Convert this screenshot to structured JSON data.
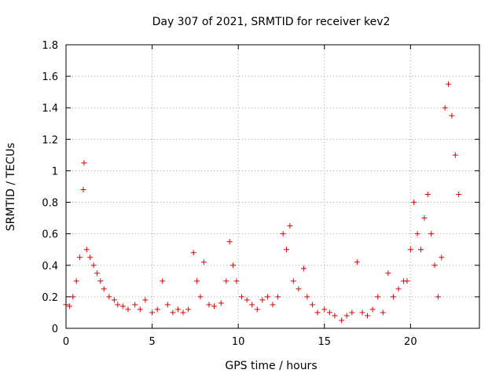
{
  "chart_data": {
    "type": "scatter",
    "title": "Day 307 of 2021, SRMTID for receiver kev2",
    "xlabel": "GPS time / hours",
    "ylabel": "SRMTID / TECUs",
    "xlim": [
      0,
      24
    ],
    "ylim": [
      0,
      1.8
    ],
    "xticks": [
      0,
      5,
      10,
      15,
      20
    ],
    "xtick_labels": [
      "0",
      "5",
      "10",
      "15",
      "20"
    ],
    "yticks": [
      0,
      0.2,
      0.4,
      0.6,
      0.8,
      1.0,
      1.2,
      1.4,
      1.6,
      1.8
    ],
    "ytick_labels": [
      "0",
      "0.2",
      "0.4",
      "0.6",
      "0.8",
      "1",
      "1.2",
      "1.4",
      "1.6",
      "1.8"
    ],
    "grid": true,
    "marker": "+",
    "color": "#e00000",
    "series": [
      {
        "name": "SRMTID",
        "x": [
          0.0,
          0.2,
          0.4,
          0.6,
          0.8,
          1.0,
          1.05,
          1.2,
          1.4,
          1.6,
          1.8,
          2.0,
          2.2,
          2.5,
          2.8,
          3.0,
          3.3,
          3.6,
          4.0,
          4.3,
          4.6,
          5.0,
          5.3,
          5.6,
          5.9,
          6.2,
          6.5,
          6.8,
          7.1,
          7.4,
          7.6,
          7.8,
          8.0,
          8.3,
          8.6,
          9.0,
          9.3,
          9.5,
          9.7,
          9.9,
          10.2,
          10.5,
          10.8,
          11.1,
          11.4,
          11.7,
          12.0,
          12.3,
          12.6,
          12.8,
          13.0,
          13.2,
          13.5,
          13.8,
          14.0,
          14.3,
          14.6,
          15.0,
          15.3,
          15.6,
          16.0,
          16.3,
          16.6,
          16.9,
          17.2,
          17.5,
          17.8,
          18.1,
          18.4,
          18.7,
          19.0,
          19.3,
          19.6,
          19.8,
          20.0,
          20.2,
          20.4,
          20.6,
          20.8,
          21.0,
          21.2,
          21.4,
          21.6,
          21.8,
          22.0,
          22.2,
          22.4,
          22.6,
          22.8
        ],
        "y": [
          0.15,
          0.14,
          0.2,
          0.3,
          0.45,
          0.88,
          1.05,
          0.5,
          0.45,
          0.4,
          0.35,
          0.3,
          0.25,
          0.2,
          0.18,
          0.15,
          0.14,
          0.12,
          0.15,
          0.12,
          0.18,
          0.1,
          0.12,
          0.3,
          0.15,
          0.1,
          0.12,
          0.1,
          0.12,
          0.48,
          0.3,
          0.2,
          0.42,
          0.15,
          0.14,
          0.16,
          0.3,
          0.55,
          0.4,
          0.3,
          0.2,
          0.18,
          0.15,
          0.12,
          0.18,
          0.2,
          0.15,
          0.2,
          0.6,
          0.5,
          0.65,
          0.3,
          0.25,
          0.38,
          0.2,
          0.15,
          0.1,
          0.12,
          0.1,
          0.08,
          0.05,
          0.08,
          0.1,
          0.42,
          0.1,
          0.08,
          0.12,
          0.2,
          0.1,
          0.35,
          0.2,
          0.25,
          0.3,
          0.3,
          0.5,
          0.8,
          0.6,
          0.5,
          0.7,
          0.85,
          0.6,
          0.4,
          0.2,
          0.45,
          1.4,
          1.55,
          1.35,
          1.1,
          0.85
        ]
      }
    ]
  }
}
